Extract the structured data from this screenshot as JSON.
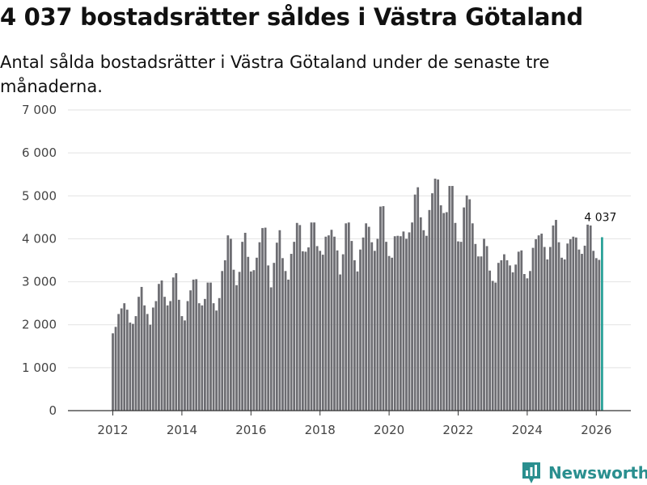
{
  "chart_data": {
    "type": "bar",
    "title": "4 037 bostadsrätter såldes i Västra Götaland",
    "subtitle": "Antal sålda bostadsrätter i Västra Götaland under de senaste tre månaderna.",
    "xlabel": "",
    "ylabel": "",
    "ylim": [
      0,
      7000
    ],
    "yticks": [
      {
        "value": 0,
        "label": "0"
      },
      {
        "value": 1000,
        "label": "1 000"
      },
      {
        "value": 2000,
        "label": "2 000"
      },
      {
        "value": 3000,
        "label": "3 000"
      },
      {
        "value": 4000,
        "label": "4 000"
      },
      {
        "value": 5000,
        "label": "5 000"
      },
      {
        "value": 6000,
        "label": "6 000"
      },
      {
        "value": 7000,
        "label": "7 000"
      }
    ],
    "xticks": [
      {
        "value": 2012,
        "label": "2012"
      },
      {
        "value": 2014,
        "label": "2014"
      },
      {
        "value": 2016,
        "label": "2016"
      },
      {
        "value": 2018,
        "label": "2018"
      },
      {
        "value": 2020,
        "label": "2020"
      },
      {
        "value": 2022,
        "label": "2022"
      },
      {
        "value": 2024,
        "label": "2024"
      },
      {
        "value": 2026,
        "label": "2026"
      }
    ],
    "xlim": [
      2010.7,
      2027.0
    ],
    "start": {
      "year": 2012,
      "month": 1
    },
    "values": [
      1800,
      1950,
      2250,
      2380,
      2500,
      2350,
      2050,
      2020,
      2200,
      2650,
      2880,
      2450,
      2250,
      2000,
      2400,
      2550,
      2950,
      3030,
      2650,
      2450,
      2550,
      3100,
      3200,
      2580,
      2200,
      2100,
      2550,
      2800,
      3050,
      3060,
      2500,
      2450,
      2600,
      2980,
      2980,
      2500,
      2330,
      2620,
      3250,
      3500,
      4080,
      4000,
      3280,
      2920,
      3230,
      3930,
      4140,
      3580,
      3240,
      3270,
      3560,
      3920,
      4250,
      4260,
      3380,
      2870,
      3440,
      3910,
      4200,
      3550,
      3250,
      3050,
      3650,
      3930,
      4370,
      4320,
      3710,
      3700,
      3800,
      4380,
      4380,
      3830,
      3720,
      3630,
      4050,
      4080,
      4210,
      4050,
      3730,
      3170,
      3640,
      4360,
      4380,
      3950,
      3500,
      3240,
      3750,
      4030,
      4360,
      4280,
      3920,
      3720,
      4000,
      4750,
      4760,
      3930,
      3600,
      3560,
      4060,
      4070,
      4060,
      4170,
      4000,
      4150,
      4380,
      5030,
      5200,
      4500,
      4200,
      4070,
      4670,
      5060,
      5400,
      5380,
      4780,
      4600,
      4620,
      5230,
      5230,
      4370,
      3940,
      3930,
      4730,
      5010,
      4920,
      4360,
      3880,
      3590,
      3590,
      4000,
      3830,
      3260,
      3020,
      2980,
      3440,
      3500,
      3640,
      3500,
      3380,
      3220,
      3400,
      3700,
      3730,
      3180,
      3080,
      3250,
      3790,
      3990,
      4080,
      4120,
      3810,
      3520,
      3810,
      4310,
      4440,
      3920,
      3560,
      3520,
      3890,
      3990,
      4050,
      4030,
      3750,
      3650,
      3840,
      4330,
      4310,
      3720,
      3550,
      3510,
      4037
    ],
    "highlight_index": 170,
    "annotation": {
      "label": "4 037"
    },
    "colors": {
      "bar": "#6d6d72",
      "highlight": "#2aa198",
      "grid": "#e2e2e2",
      "axis": "#333333",
      "tick_text": "#444444"
    }
  },
  "branding": {
    "logo_text": "Newsworthy"
  }
}
